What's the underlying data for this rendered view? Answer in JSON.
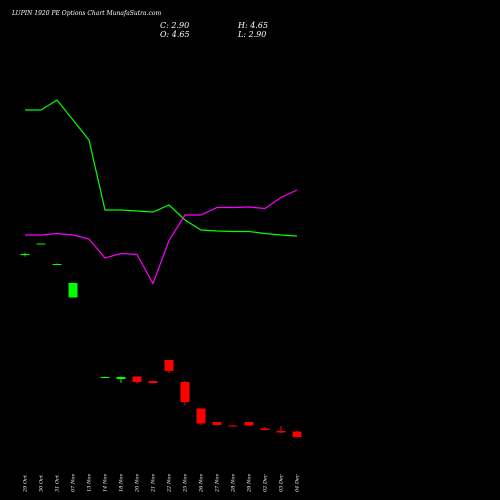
{
  "header": {
    "title": "LUPIN 1920 PE Options Chart MunafaSutra.com",
    "close_label": "C: 2.90",
    "high_label": "H: 4.65",
    "open_label": "O: 4.65",
    "low_label": "L: 2.90"
  },
  "chart_data": {
    "type": "candlestick",
    "title": "LUPIN 1920 PE Options Chart MunafaSutra.com",
    "categories": [
      "29 Oct",
      "30 Oct",
      "31 Oct",
      "07 Nov",
      "13 Nov",
      "14 Nov",
      "18 Nov",
      "20 Nov",
      "21 Nov",
      "22 Nov",
      "25 Nov",
      "26 Nov",
      "27 Nov",
      "28 Nov",
      "29 Nov",
      "02 Dec",
      "03 Dec",
      "04 Dec"
    ],
    "positions": [
      0,
      1,
      2,
      3,
      5,
      6,
      7,
      8,
      9,
      10,
      11,
      12,
      13,
      14,
      15,
      16,
      17
    ],
    "candles": [
      {
        "x": "29 Oct",
        "open": 53.2,
        "high": 53.4,
        "low": 52.7,
        "close": 53.0,
        "color": "#00ff00"
      },
      {
        "x": "30 Oct",
        "open": 55.3,
        "high": 55.3,
        "low": 55.2,
        "close": 55.2,
        "color": "#00ff00"
      },
      {
        "x": "31 Oct",
        "open": 51.2,
        "high": 51.3,
        "low": 51.1,
        "close": 51.1,
        "color": "#00ff00"
      },
      {
        "x": "07 Nov",
        "open": 44.5,
        "high": 47.4,
        "low": 44.5,
        "close": 47.4,
        "color": "#00ff00"
      },
      {
        "x": "13 Nov",
        "open": 28.5,
        "high": 28.7,
        "low": 28.4,
        "close": 28.6,
        "color": "#00ff00"
      },
      {
        "x": "14 Nov",
        "open": 28.2,
        "high": 28.7,
        "low": 27.4,
        "close": 28.6,
        "color": "#00ff00"
      },
      {
        "x": "18 Nov",
        "open": 28.7,
        "high": 28.7,
        "low": 27.3,
        "close": 27.6,
        "color": "#ff0000"
      },
      {
        "x": "20 Nov",
        "open": 27.8,
        "high": 27.9,
        "low": 27.3,
        "close": 27.4,
        "color": "#ff0000"
      },
      {
        "x": "21 Nov",
        "open": 32.0,
        "high": 32.0,
        "low": 29.4,
        "close": 29.8,
        "color": "#ff0000"
      },
      {
        "x": "22 Nov",
        "open": 27.6,
        "high": 27.8,
        "low": 22.9,
        "close": 23.6,
        "color": "#ff0000"
      },
      {
        "x": "25 Nov",
        "open": 22.3,
        "high": 22.3,
        "low": 19.0,
        "close": 19.3,
        "color": "#ff0000"
      },
      {
        "x": "26 Nov",
        "open": 19.6,
        "high": 19.6,
        "low": 18.9,
        "close": 19.0,
        "color": "#ff0000"
      },
      {
        "x": "27 Nov",
        "open": 18.9,
        "high": 19.0,
        "low": 18.7,
        "close": 18.8,
        "color": "#ff0000"
      },
      {
        "x": "28 Nov",
        "open": 19.6,
        "high": 19.7,
        "low": 18.8,
        "close": 18.9,
        "color": "#ff0000"
      },
      {
        "x": "29 Nov",
        "open": 18.3,
        "high": 18.6,
        "low": 17.9,
        "close": 18.0,
        "color": "#ff0000"
      },
      {
        "x": "02 Dec",
        "open": 17.8,
        "high": 18.8,
        "low": 17.4,
        "close": 17.5,
        "color": "#ff0000"
      },
      {
        "x": "03 Dec",
        "open": 17.7,
        "high": 17.8,
        "low": 16.5,
        "close": 16.6,
        "color": "#ff0000"
      }
    ],
    "series": [
      {
        "color": "#00ff00",
        "x": [
          0,
          1,
          2,
          3,
          4,
          5,
          6,
          7,
          8,
          9,
          10,
          11,
          12,
          13,
          14,
          15,
          16,
          17
        ],
        "values": [
          82,
          82,
          84,
          80,
          76,
          62,
          62,
          61.8,
          61.6,
          63,
          60,
          58,
          57.8,
          57.7,
          57.7,
          57.3,
          57,
          56.8
        ]
      },
      {
        "color": "#ff00ff",
        "x": [
          0,
          1,
          2,
          3,
          4,
          5,
          6,
          7,
          8,
          9,
          10,
          11,
          12,
          13,
          14,
          15,
          16,
          17
        ],
        "values": [
          57,
          57,
          57.3,
          57,
          56.2,
          52.4,
          53.3,
          53.1,
          47.3,
          55.9,
          61,
          61,
          62.5,
          62.5,
          62.6,
          62.3,
          64.5,
          66
        ]
      }
    ],
    "ylim": [
      10,
      100
    ],
    "grid": false,
    "xlabel": "",
    "ylabel": ""
  }
}
